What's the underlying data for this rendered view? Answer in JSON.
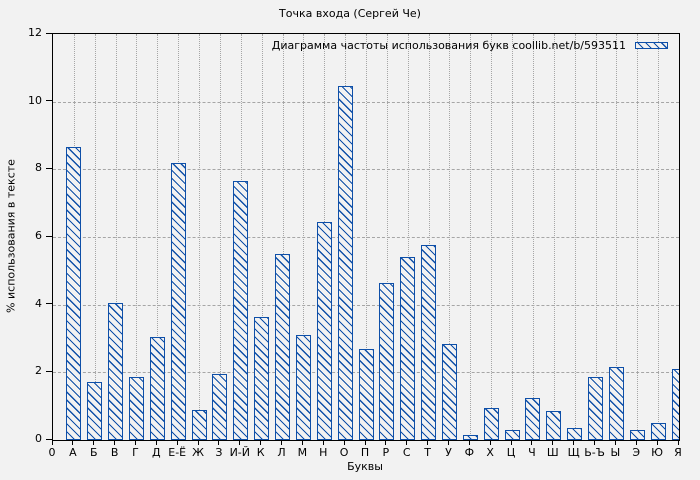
{
  "colors": {
    "bar_blue": "#0e4fa8",
    "grid_gray": "#a6a6a6",
    "axis_black": "#000000",
    "background": "#f2f2f2"
  },
  "chart_data": {
    "type": "bar",
    "title": "Точка входа (Сергей Че)",
    "xlabel": "Буквы",
    "ylabel": "% использования в тексте",
    "legend": "Диаграмма частоты использования букв coollib.net/b/593511",
    "legend_position": "top-right-inside",
    "bar_style": "blue outline with diagonal \\ hatch fill",
    "grid": true,
    "ylim": [
      0,
      12
    ],
    "y_ticks": [
      0,
      2,
      4,
      6,
      8,
      10,
      12
    ],
    "x_origin_tick": "0",
    "categories": [
      "А",
      "Б",
      "В",
      "Г",
      "Д",
      "Е-Ё",
      "Ж",
      "З",
      "И-Й",
      "К",
      "Л",
      "М",
      "Н",
      "О",
      "П",
      "Р",
      "С",
      "Т",
      "У",
      "Ф",
      "Х",
      "Ц",
      "Ч",
      "Ш",
      "Щ",
      "Ь-Ъ",
      "Ы",
      "Э",
      "Ю",
      "Я"
    ],
    "values": [
      8.65,
      1.7,
      4.05,
      1.85,
      3.05,
      8.2,
      0.9,
      1.95,
      7.65,
      3.65,
      5.5,
      3.1,
      6.45,
      10.45,
      2.7,
      4.65,
      5.4,
      5.75,
      2.85,
      0.15,
      0.95,
      0.3,
      1.25,
      0.85,
      0.35,
      1.85,
      2.15,
      0.3,
      0.5,
      2.1
    ]
  }
}
